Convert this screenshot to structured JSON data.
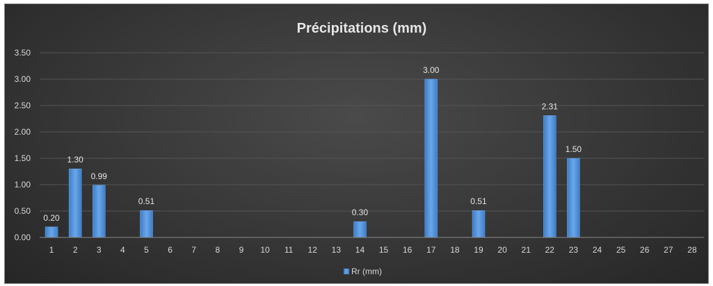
{
  "chart_data": {
    "type": "bar",
    "title": "Précipitations (mm)",
    "xlabel": "",
    "ylabel": "",
    "categories": [
      "1",
      "2",
      "3",
      "4",
      "5",
      "6",
      "7",
      "8",
      "9",
      "10",
      "11",
      "12",
      "13",
      "14",
      "15",
      "16",
      "17",
      "18",
      "19",
      "20",
      "21",
      "22",
      "23",
      "24",
      "25",
      "26",
      "27",
      "28"
    ],
    "series": [
      {
        "name": "Rr (mm)",
        "values": [
          0.2,
          1.3,
          0.99,
          0,
          0.51,
          0,
          0,
          0,
          0,
          0,
          0,
          0,
          0,
          0.3,
          0,
          0,
          3.0,
          0,
          0.51,
          0,
          0,
          2.31,
          1.5,
          0,
          0,
          0,
          0,
          0
        ],
        "data_labels": [
          "0.20",
          "1.30",
          "0.99",
          "",
          "0.51",
          "",
          "",
          "",
          "",
          "",
          "",
          "",
          "",
          "0.30",
          "",
          "",
          "3.00",
          "",
          "0.51",
          "",
          "",
          "2.31",
          "1.50",
          "",
          "",
          "",
          "",
          ""
        ]
      }
    ],
    "ylim": [
      0,
      3.5
    ],
    "yticks": [
      "0.00",
      "0.50",
      "1.00",
      "1.50",
      "2.00",
      "2.50",
      "3.00",
      "3.50"
    ],
    "grid": true,
    "legend_position": "bottom",
    "colors": {
      "bar": "#4f8fd6",
      "bar_highlight": "#6aa6e8",
      "background": "#3a3a3a",
      "gridline": "#555555",
      "text": "#d9d9d9"
    }
  }
}
